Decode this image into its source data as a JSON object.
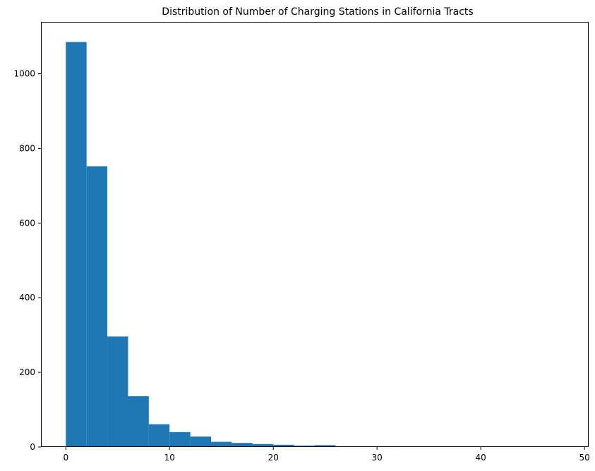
{
  "chart_data": {
    "type": "bar",
    "title": "Distribution of Number of Charging Stations in California Tracts",
    "xlabel": "",
    "ylabel": "",
    "bin_edges": [
      0,
      2,
      4,
      6,
      8,
      10,
      12,
      14,
      16,
      18,
      20,
      22,
      24,
      26,
      28,
      30,
      32,
      34,
      36,
      38,
      40,
      42,
      44,
      46,
      48
    ],
    "values": [
      1085,
      752,
      296,
      136,
      61,
      40,
      28,
      14,
      11,
      8,
      6,
      4,
      5,
      1,
      2,
      2,
      1,
      1,
      0,
      0,
      0,
      0,
      0,
      0
    ],
    "xlim": [
      -2.4,
      50.4
    ],
    "ylim": [
      0,
      1139
    ],
    "xticks": [
      0,
      10,
      20,
      30,
      40,
      50
    ],
    "yticks": [
      0,
      200,
      400,
      600,
      800,
      1000
    ],
    "bar_color": "#1f77b4",
    "grid": false,
    "legend": "none"
  }
}
